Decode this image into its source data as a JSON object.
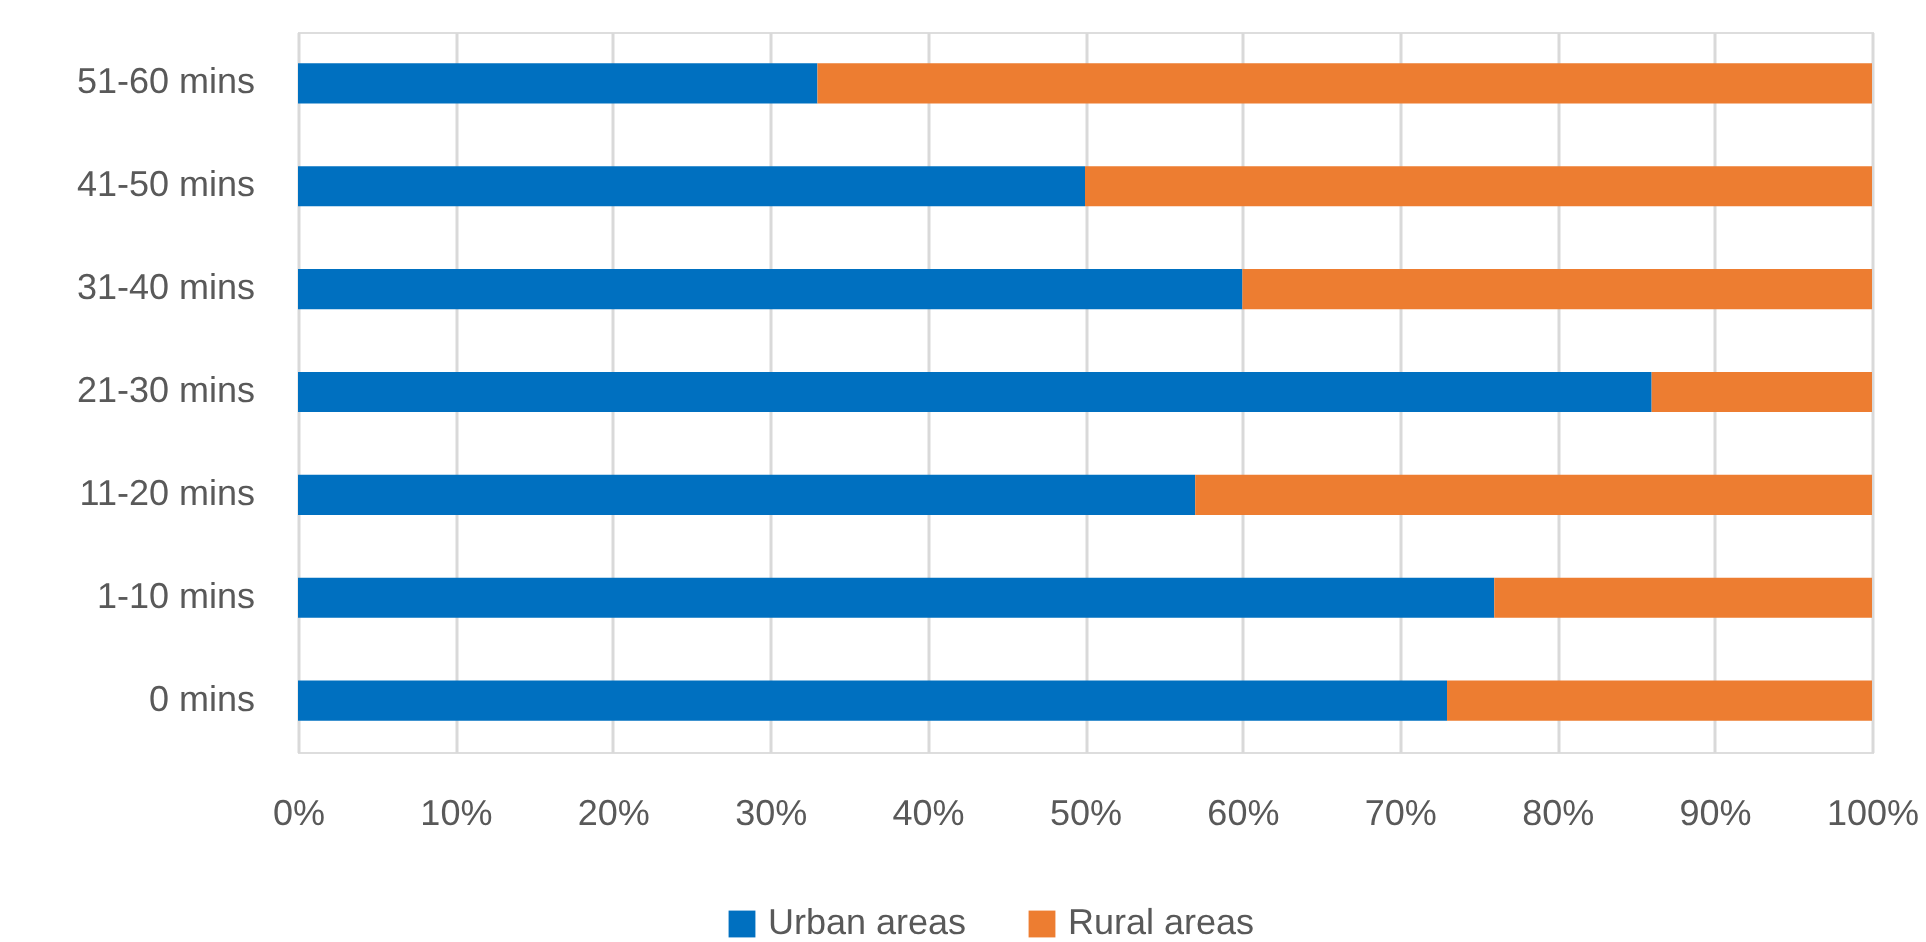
{
  "chart_data": {
    "type": "bar",
    "orientation": "horizontal",
    "stacked": true,
    "categories": [
      "51-60 mins",
      "41-50 mins",
      "31-40 mins",
      "21-30 mins",
      "11-20 mins",
      "1-10 mins",
      "0 mins"
    ],
    "series": [
      {
        "name": "Urban areas",
        "color": "#0070c0",
        "values": [
          33,
          50,
          60,
          86,
          57,
          76,
          73
        ]
      },
      {
        "name": "Rural areas",
        "color": "#ed7d31",
        "values": [
          67,
          50,
          40,
          14,
          43,
          24,
          27
        ]
      }
    ],
    "xlim": [
      0,
      100
    ],
    "xticks": [
      {
        "value": 0,
        "label": "0%"
      },
      {
        "value": 10,
        "label": "10%"
      },
      {
        "value": 20,
        "label": "20%"
      },
      {
        "value": 30,
        "label": "30%"
      },
      {
        "value": 40,
        "label": "40%"
      },
      {
        "value": 50,
        "label": "50%"
      },
      {
        "value": 60,
        "label": "60%"
      },
      {
        "value": 70,
        "label": "70%"
      },
      {
        "value": 80,
        "label": "80%"
      },
      {
        "value": 90,
        "label": "90%"
      },
      {
        "value": 100,
        "label": "100%"
      }
    ],
    "grid": "x",
    "legend": "bottom"
  }
}
